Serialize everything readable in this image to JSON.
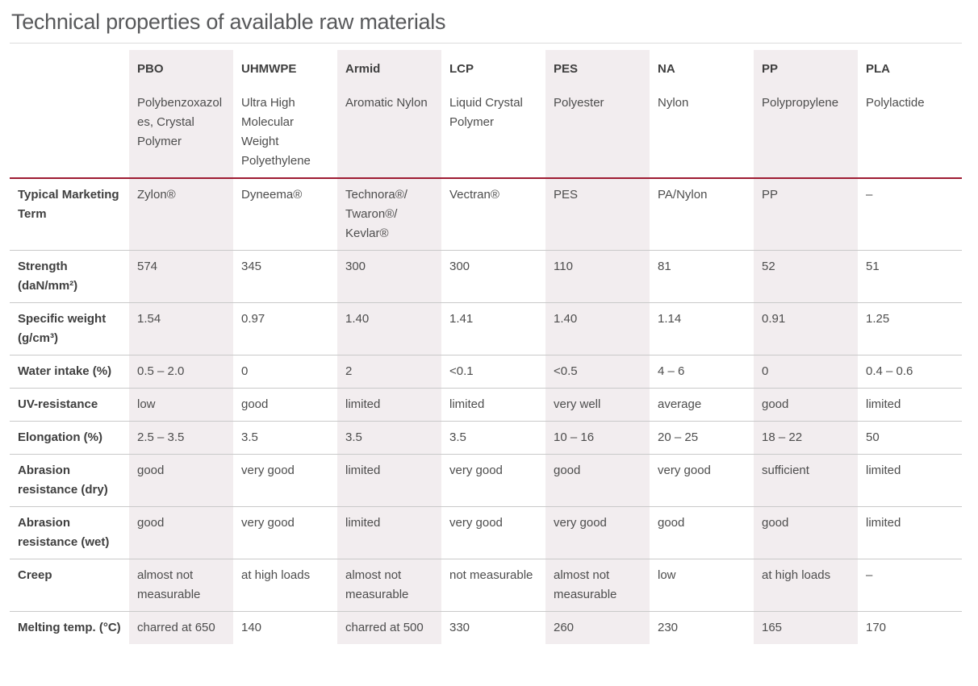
{
  "page": {
    "title": "Technical properties of available raw materials"
  },
  "colors": {
    "accent_line": "#9e1b32",
    "column_shade": "#f2edef"
  },
  "table": {
    "columns": [
      {
        "abbr": "PBO",
        "name": "Polybenzoxazoles, Crystal Polymer"
      },
      {
        "abbr": "UHMWPE",
        "name": "Ultra High Molecular Weight Polyethylene"
      },
      {
        "abbr": "Armid",
        "name": "Aromatic Nylon"
      },
      {
        "abbr": "LCP",
        "name": "Liquid Crystal Polymer"
      },
      {
        "abbr": "PES",
        "name": "Polyester"
      },
      {
        "abbr": "NA",
        "name": "Nylon"
      },
      {
        "abbr": "PP",
        "name": "Polypropylene"
      },
      {
        "abbr": "PLA",
        "name": "Polylactide"
      }
    ],
    "rows": [
      {
        "label": "Typical Marketing Term",
        "values": [
          "Zylon®",
          "Dyneema®",
          "Technora®/ Twaron®/ Kevlar®",
          "Vectran®",
          "PES",
          "PA/Nylon",
          "PP",
          "–"
        ]
      },
      {
        "label": "Strength (daN/mm²)",
        "values": [
          "574",
          "345",
          "300",
          "300",
          "110",
          "81",
          "52",
          "51"
        ]
      },
      {
        "label": "Specific weight (g/cm³)",
        "values": [
          "1.54",
          "0.97",
          "1.40",
          "1.41",
          "1.40",
          "1.14",
          "0.91",
          "1.25"
        ]
      },
      {
        "label": "Water intake (%)",
        "values": [
          "0.5 – 2.0",
          "0",
          "2",
          "<0.1",
          "<0.5",
          "4 – 6",
          "0",
          "0.4 – 0.6"
        ]
      },
      {
        "label": "UV-resistance",
        "values": [
          "low",
          "good",
          "limited",
          "limited",
          "very well",
          "average",
          "good",
          "limited"
        ]
      },
      {
        "label": "Elongation (%)",
        "values": [
          "2.5 – 3.5",
          "3.5",
          "3.5",
          "3.5",
          "10 – 16",
          "20 – 25",
          "18 – 22",
          "50"
        ]
      },
      {
        "label": "Abrasion resistance (dry)",
        "values": [
          "good",
          "very good",
          "limited",
          "very good",
          "good",
          "very good",
          "sufficient",
          "limited"
        ]
      },
      {
        "label": "Abrasion resistance (wet)",
        "values": [
          "good",
          "very good",
          "limited",
          "very good",
          "very good",
          "good",
          "good",
          "limited"
        ]
      },
      {
        "label": "Creep",
        "values": [
          "almost not measurable",
          "at high loads",
          "almost not measurable",
          "not measurable",
          "almost not measurable",
          "low",
          "at high loads",
          "–"
        ]
      },
      {
        "label": "Melting temp. (°C)",
        "values": [
          "charred at 650",
          "140",
          "charred at 500",
          "330",
          "260",
          "230",
          "165",
          "170"
        ]
      }
    ]
  }
}
